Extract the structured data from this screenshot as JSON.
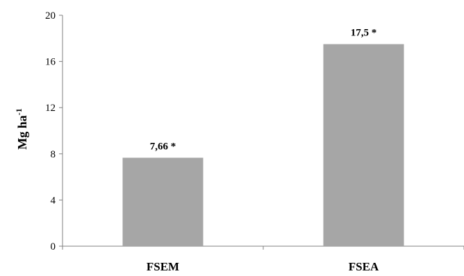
{
  "chart_data": {
    "type": "bar",
    "categories": [
      "FSEM",
      "FSEA"
    ],
    "values": [
      7.66,
      17.5
    ],
    "data_labels": [
      "7,66 *",
      "17,5 *"
    ],
    "ylabel": {
      "main": "Mg ha",
      "superscript": "-1"
    },
    "ylim": [
      0,
      20
    ],
    "yticks": [
      0,
      4,
      8,
      12,
      16,
      20
    ],
    "grid": false,
    "legend": "none",
    "bar_color": "#a6a6a6",
    "axis_color": "#808080"
  }
}
